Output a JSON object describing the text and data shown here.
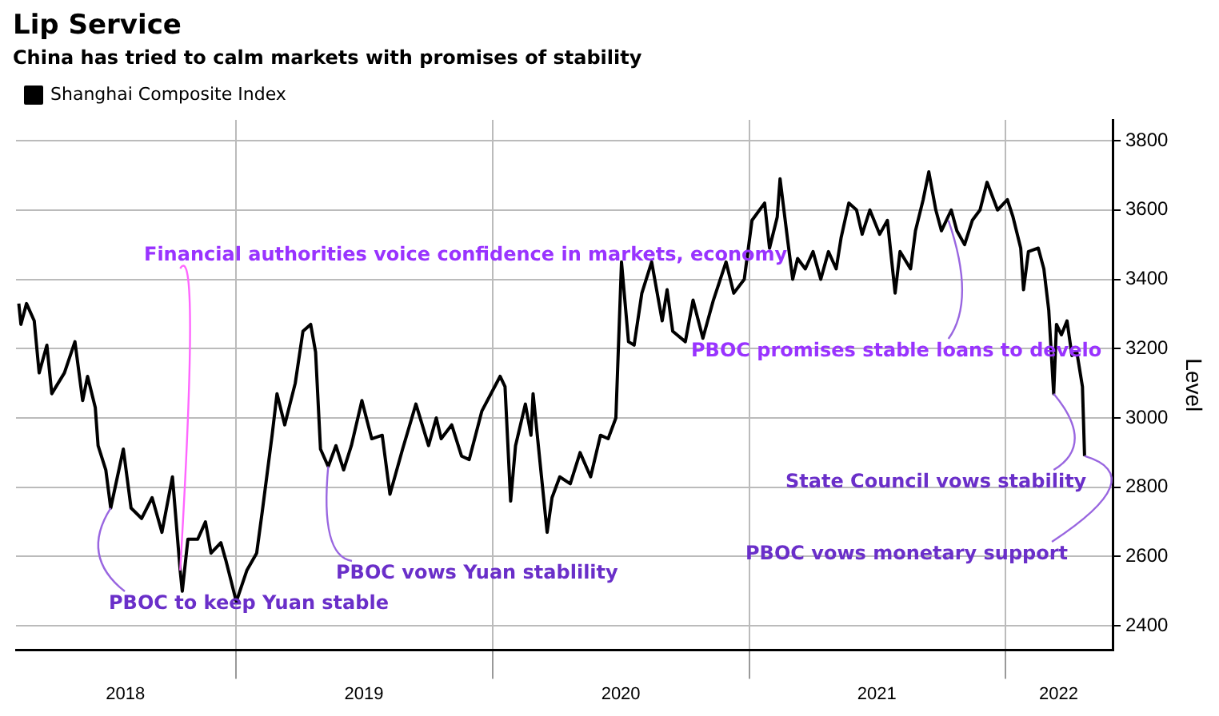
{
  "chart_data": {
    "type": "line",
    "title": "Lip Service",
    "subtitle": "China has tried to calm markets with promises of stability",
    "ylabel": "Level",
    "series": [
      {
        "name": "Shanghai Composite Index",
        "color": "#000000",
        "x": [
          "2018-02-25",
          "2018-02-28",
          "2018-03-08",
          "2018-03-19",
          "2018-03-26",
          "2018-04-06",
          "2018-04-13",
          "2018-05-01",
          "2018-05-16",
          "2018-05-27",
          "2018-06-03",
          "2018-06-14",
          "2018-06-18",
          "2018-06-29",
          "2018-07-06",
          "2018-07-24",
          "2018-08-04",
          "2018-08-19",
          "2018-09-03",
          "2018-09-17",
          "2018-10-02",
          "2018-10-13",
          "2018-10-16",
          "2018-10-24",
          "2018-11-07",
          "2018-11-18",
          "2018-11-26",
          "2018-12-10",
          "2018-12-17",
          "2019-01-01",
          "2019-01-16",
          "2019-01-30",
          "2019-02-07",
          "2019-02-21",
          "2019-02-28",
          "2019-03-11",
          "2019-03-26",
          "2019-04-06",
          "2019-04-17",
          "2019-04-24",
          "2019-05-01",
          "2019-05-12",
          "2019-05-23",
          "2019-06-03",
          "2019-06-14",
          "2019-06-29",
          "2019-07-13",
          "2019-07-28",
          "2019-08-08",
          "2019-08-26",
          "2019-09-14",
          "2019-10-02",
          "2019-10-13",
          "2019-10-20",
          "2019-11-04",
          "2019-11-18",
          "2019-11-29",
          "2019-12-17",
          "2020-01-12",
          "2020-01-19",
          "2020-01-27",
          "2020-02-03",
          "2020-02-17",
          "2020-02-25",
          "2020-02-28",
          "2020-03-11",
          "2020-03-19",
          "2020-03-26",
          "2020-04-06",
          "2020-04-21",
          "2020-05-05",
          "2020-05-20",
          "2020-06-03",
          "2020-06-14",
          "2020-06-25",
          "2020-07-03",
          "2020-07-13",
          "2020-07-21",
          "2020-08-01",
          "2020-08-15",
          "2020-08-30",
          "2020-09-06",
          "2020-09-14",
          "2020-10-02",
          "2020-10-13",
          "2020-10-27",
          "2020-11-11",
          "2020-11-29",
          "2020-12-10",
          "2020-12-25",
          "2021-01-05",
          "2021-01-23",
          "2021-01-30",
          "2021-02-10",
          "2021-02-14",
          "2021-02-25",
          "2021-03-04",
          "2021-03-11",
          "2021-03-22",
          "2021-04-02",
          "2021-04-13",
          "2021-04-24",
          "2021-05-05",
          "2021-05-12",
          "2021-05-23",
          "2021-06-03",
          "2021-06-11",
          "2021-06-22",
          "2021-07-06",
          "2021-07-17",
          "2021-07-28",
          "2021-08-04",
          "2021-08-19",
          "2021-08-26",
          "2021-09-06",
          "2021-09-14",
          "2021-09-24",
          "2021-10-02",
          "2021-10-16",
          "2021-10-24",
          "2021-11-04",
          "2021-11-15",
          "2021-11-26",
          "2021-12-06",
          "2021-12-21",
          "2022-01-04",
          "2022-01-12",
          "2022-01-23",
          "2022-01-27",
          "2022-02-03",
          "2022-02-17",
          "2022-02-25",
          "2022-03-04",
          "2022-03-11",
          "2022-03-15",
          "2022-03-22",
          "2022-03-30",
          "2022-04-06",
          "2022-04-13",
          "2022-04-21",
          "2022-04-24"
        ],
        "values": [
          3330,
          3270,
          3330,
          3280,
          3130,
          3210,
          3070,
          3130,
          3220,
          3050,
          3120,
          3030,
          2920,
          2850,
          2740,
          2910,
          2740,
          2710,
          2770,
          2670,
          2830,
          2560,
          2500,
          2650,
          2650,
          2700,
          2610,
          2640,
          2590,
          2470,
          2560,
          2610,
          2730,
          2950,
          3070,
          2980,
          3100,
          3250,
          3270,
          3190,
          2910,
          2860,
          2920,
          2850,
          2920,
          3050,
          2940,
          2950,
          2780,
          2910,
          3040,
          2920,
          3000,
          2940,
          2980,
          2890,
          2880,
          3020,
          3120,
          3090,
          2760,
          2920,
          3040,
          2950,
          3070,
          2830,
          2670,
          2770,
          2830,
          2810,
          2900,
          2830,
          2950,
          2940,
          3000,
          3450,
          3220,
          3210,
          3360,
          3450,
          3280,
          3370,
          3250,
          3220,
          3340,
          3230,
          3340,
          3450,
          3360,
          3400,
          3570,
          3620,
          3490,
          3580,
          3690,
          3510,
          3400,
          3460,
          3430,
          3480,
          3400,
          3480,
          3430,
          3520,
          3620,
          3600,
          3530,
          3600,
          3530,
          3570,
          3360,
          3480,
          3430,
          3540,
          3630,
          3710,
          3600,
          3540,
          3600,
          3540,
          3500,
          3570,
          3600,
          3680,
          3600,
          3630,
          3580,
          3490,
          3370,
          3480,
          3490,
          3430,
          3310,
          3070,
          3270,
          3240,
          3280,
          3180,
          3190,
          3090,
          2890
        ]
      }
    ],
    "xlim": [
      "2018-02-21",
      "2022-06-03"
    ],
    "xticks": [
      {
        "value": "2018-07-27",
        "label": "2018"
      },
      {
        "value": "2019-01-01",
        "label": null
      },
      {
        "value": "2019-07-02",
        "label": "2019"
      },
      {
        "value": "2020-01-01",
        "label": null
      },
      {
        "value": "2020-07-02",
        "label": "2020"
      },
      {
        "value": "2021-01-01",
        "label": null
      },
      {
        "value": "2021-07-02",
        "label": "2021"
      },
      {
        "value": "2022-01-01",
        "label": null
      },
      {
        "value": "2022-03-18",
        "label": "2022"
      }
    ],
    "ylim": [
      2330,
      3860
    ],
    "yticks": [
      2400,
      2600,
      2800,
      3000,
      3200,
      3400,
      3600,
      3800
    ],
    "grid": true,
    "legend": "top left",
    "marker": "none",
    "line_style": "solid",
    "annotations": [
      {
        "text": "Financial authorities voice confidence in markets, economy",
        "x": "2018-10-13",
        "y": 2560
      },
      {
        "text": "PBOC to keep Yuan stable",
        "x": "2018-07-06",
        "y": 2740
      },
      {
        "text": "PBOC vows Yuan stablility",
        "x": "2019-05-12",
        "y": 2860
      },
      {
        "text": "PBOC promises stable loans to develo",
        "x": "2021-10-12",
        "y": 3570
      },
      {
        "text": "State Council vows stability",
        "x": "2022-03-11",
        "y": 3070
      },
      {
        "text": "PBOC vows monetary support",
        "x": "2022-04-24",
        "y": 2890
      }
    ]
  }
}
